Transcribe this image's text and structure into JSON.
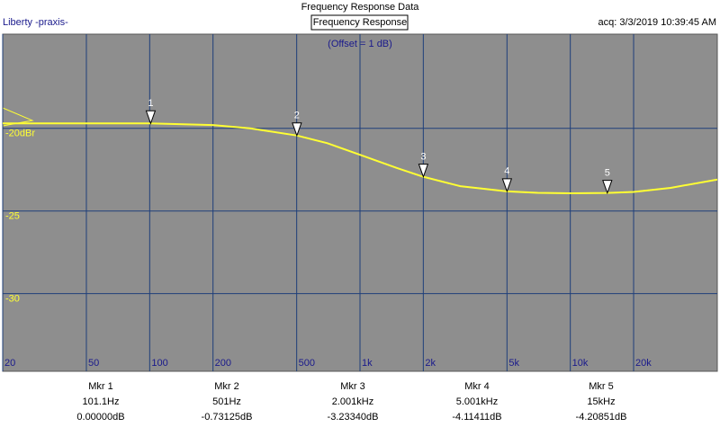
{
  "header": {
    "window_title": "Frequency Response Data",
    "app": "Liberty -praxis-",
    "panel_title": "Frequency Response",
    "acquired": "acq: 3/3/2019 10:39:45 AM"
  },
  "chart_data": {
    "type": "line",
    "subtitle": "(Offset = 1 dB)",
    "log_x": true,
    "xlim": [
      20,
      50000
    ],
    "ylim": [
      -34.7,
      -14.3
    ],
    "xticks": [
      20,
      50,
      100,
      200,
      500,
      {
        "value": 1000,
        "label": "1k"
      },
      {
        "value": 2000,
        "label": "2k"
      },
      {
        "value": 5000,
        "label": "5k"
      },
      {
        "value": 10000,
        "label": "10k"
      },
      {
        "value": 20000,
        "label": "20k"
      }
    ],
    "yticks": [
      {
        "value": -20,
        "label": "-20dBr"
      },
      -25,
      -30
    ],
    "grid": true,
    "series": [
      {
        "color": "#ffff33",
        "x": [
          20,
          50,
          100,
          200,
          300,
          500,
          700,
          1000,
          1500,
          2000,
          3000,
          5000,
          7000,
          10000,
          15000,
          20000,
          30000,
          50000
        ],
        "values": [
          -19.7,
          -19.7,
          -19.7,
          -19.8,
          -20.0,
          -20.43,
          -20.9,
          -21.6,
          -22.4,
          -22.93,
          -23.5,
          -23.81,
          -23.9,
          -23.93,
          -23.91,
          -23.85,
          -23.6,
          -23.1
        ]
      }
    ],
    "markers": [
      {
        "id": "1",
        "name": "Mkr 1",
        "x": 101.1,
        "x_label": "101.1Hz",
        "value": 0,
        "value_label": "0.00000dB"
      },
      {
        "id": "2",
        "name": "Mkr 2",
        "x": 501,
        "x_label": "501Hz",
        "value": -0.73125,
        "value_label": "-0.73125dB"
      },
      {
        "id": "3",
        "name": "Mkr 3",
        "x": 2001,
        "x_label": "2.001kHz",
        "value": -3.2334,
        "value_label": "-3.23340dB"
      },
      {
        "id": "4",
        "name": "Mkr 4",
        "x": 5001,
        "x_label": "5.001kHz",
        "value": -4.11411,
        "value_label": "-4.11411dB"
      },
      {
        "id": "5",
        "name": "Mkr 5",
        "x": 15000,
        "x_label": "15kHz",
        "value": -4.20851,
        "value_label": "-4.20851dB"
      }
    ]
  }
}
